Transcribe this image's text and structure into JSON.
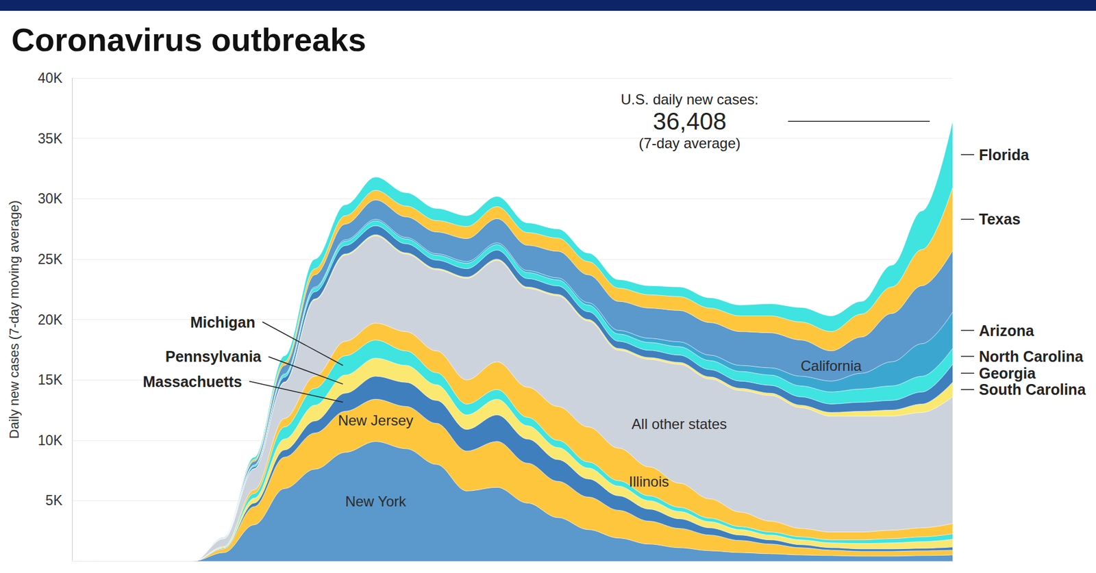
{
  "chart_data": {
    "type": "area",
    "title": "Coronavirus outbreaks",
    "y_label": "Daily new cases (7-day moving average)",
    "annotations": [
      "U.S. daily new cases:",
      "36,408",
      "(7-day average)"
    ],
    "categories": [
      null,
      null,
      null,
      null,
      null,
      null,
      null,
      null,
      null,
      null,
      null,
      null,
      null,
      null,
      null,
      null,
      null,
      null,
      null,
      null,
      null,
      null,
      null,
      null,
      null,
      null,
      null,
      null,
      null,
      null
    ],
    "series": [
      {
        "name": "New York",
        "color": "#5b98cc",
        "values": [
          0,
          0,
          0,
          0,
          0,
          700,
          3000,
          6000,
          7600,
          9000,
          9900,
          9300,
          8000,
          5800,
          6100,
          4800,
          3600,
          2600,
          1900,
          1400,
          1100,
          850,
          700,
          600,
          500,
          450,
          400,
          400,
          450,
          500
        ]
      },
      {
        "name": "New Jersey",
        "color": "#fec63d",
        "values": [
          0,
          0,
          0,
          0,
          0,
          300,
          1500,
          2600,
          3000,
          3400,
          3500,
          3500,
          3400,
          3300,
          3800,
          3300,
          3000,
          2700,
          2300,
          1900,
          1600,
          1300,
          1000,
          800,
          600,
          450,
          400,
          400,
          400,
          400
        ]
      },
      {
        "name": "Massachuetts",
        "color": "#3f7fbe",
        "values": [
          0,
          0,
          0,
          0,
          0,
          50,
          300,
          600,
          1000,
          1500,
          1900,
          2000,
          1900,
          1800,
          2200,
          2000,
          1800,
          1500,
          1200,
          1000,
          800,
          600,
          450,
          350,
          250,
          200,
          200,
          200,
          200,
          250
        ]
      },
      {
        "name": "Pennsylvania",
        "color": "#fbe870",
        "values": [
          0,
          0,
          0,
          0,
          0,
          50,
          400,
          900,
          1300,
          1500,
          1500,
          1400,
          1300,
          1200,
          1300,
          1100,
          1000,
          900,
          800,
          700,
          600,
          500,
          450,
          400,
          400,
          400,
          450,
          500,
          550,
          650
        ]
      },
      {
        "name": "Michigan",
        "color": "#3fe3e0",
        "values": [
          0,
          0,
          0,
          0,
          0,
          50,
          400,
          1000,
          1400,
          1600,
          1500,
          1200,
          1000,
          900,
          800,
          700,
          600,
          500,
          450,
          400,
          350,
          300,
          250,
          250,
          250,
          250,
          300,
          350,
          400,
          450
        ]
      },
      {
        "name": "Illinois",
        "color": "#fec63d",
        "values": [
          0,
          0,
          0,
          0,
          0,
          50,
          300,
          700,
          1000,
          1200,
          1400,
          1600,
          1800,
          2000,
          2300,
          2500,
          2800,
          2900,
          2700,
          2400,
          2000,
          1600,
          1200,
          900,
          700,
          650,
          650,
          700,
          750,
          850
        ]
      },
      {
        "name": "All other states",
        "color": "#ccd3dc",
        "values": [
          0,
          0,
          0,
          0,
          0,
          650,
          1730,
          2970,
          6320,
          7130,
          7220,
          6420,
          6720,
          8410,
          8390,
          8180,
          9160,
          8770,
          8110,
          8900,
          9840,
          9930,
          10070,
          10410,
          10000,
          9600,
          9600,
          9450,
          9550,
          10500
        ]
      },
      {
        "name": "South Carolina",
        "color": "#fbe870",
        "values": [
          0,
          0,
          0,
          0,
          0,
          0,
          20,
          50,
          80,
          100,
          100,
          100,
          100,
          100,
          110,
          110,
          120,
          130,
          140,
          150,
          160,
          170,
          180,
          190,
          200,
          300,
          400,
          500,
          700,
          1200
        ]
      },
      {
        "name": "Georgia",
        "color": "#3f7fbe",
        "values": [
          0,
          0,
          0,
          0,
          0,
          30,
          150,
          400,
          600,
          700,
          750,
          750,
          700,
          700,
          750,
          700,
          700,
          650,
          600,
          600,
          600,
          600,
          600,
          650,
          700,
          700,
          750,
          800,
          1000,
          1500
        ]
      },
      {
        "name": "North Carolina",
        "color": "#3fe3e0",
        "values": [
          0,
          0,
          0,
          0,
          0,
          20,
          100,
          200,
          300,
          350,
          400,
          400,
          400,
          450,
          450,
          500,
          500,
          550,
          600,
          650,
          700,
          750,
          800,
          850,
          900,
          1000,
          1100,
          1200,
          1300,
          1300
        ]
      },
      {
        "name": "Arizona",
        "color": "#3ba7d0",
        "values": [
          0,
          0,
          0,
          0,
          0,
          10,
          50,
          80,
          100,
          120,
          130,
          130,
          130,
          140,
          150,
          160,
          170,
          200,
          300,
          350,
          400,
          450,
          500,
          600,
          800,
          900,
          1300,
          2000,
          2700,
          3000
        ]
      },
      {
        "name": "California",
        "color": "#5b98cc",
        "values": [
          0,
          0,
          0,
          0,
          0,
          50,
          300,
          700,
          1000,
          1300,
          1600,
          1700,
          1800,
          1900,
          2000,
          2100,
          2200,
          2300,
          2400,
          2500,
          2600,
          2700,
          2800,
          2900,
          3000,
          2500,
          3000,
          4000,
          4800,
          5100
        ]
      },
      {
        "name": "Texas",
        "color": "#fec63d",
        "values": [
          0,
          0,
          0,
          0,
          0,
          20,
          150,
          300,
          500,
          700,
          800,
          900,
          950,
          1000,
          1000,
          1050,
          1100,
          1100,
          1100,
          1100,
          1150,
          1200,
          1300,
          1400,
          1500,
          1600,
          1900,
          2200,
          3000,
          5200
        ]
      },
      {
        "name": "Florida",
        "color": "#3fe3e0",
        "values": [
          0,
          0,
          0,
          0,
          0,
          20,
          200,
          500,
          800,
          900,
          1100,
          1100,
          1000,
          900,
          850,
          800,
          750,
          700,
          700,
          750,
          800,
          850,
          900,
          1000,
          1200,
          1300,
          1050,
          1800,
          3200,
          5508
        ]
      }
    ],
    "ylim": [
      0,
      40000
    ],
    "yticks": [
      {
        "value": 5000,
        "label": "5K"
      },
      {
        "value": 10000,
        "label": "10K"
      },
      {
        "value": 15000,
        "label": "15K"
      },
      {
        "value": 20000,
        "label": "20K"
      },
      {
        "value": 25000,
        "label": "25K"
      },
      {
        "value": 30000,
        "label": "30K"
      },
      {
        "value": 35000,
        "label": "35K"
      },
      {
        "value": 40000,
        "label": "40K"
      }
    ],
    "grid": true,
    "stacked": true,
    "tick_labels": "y"
  }
}
